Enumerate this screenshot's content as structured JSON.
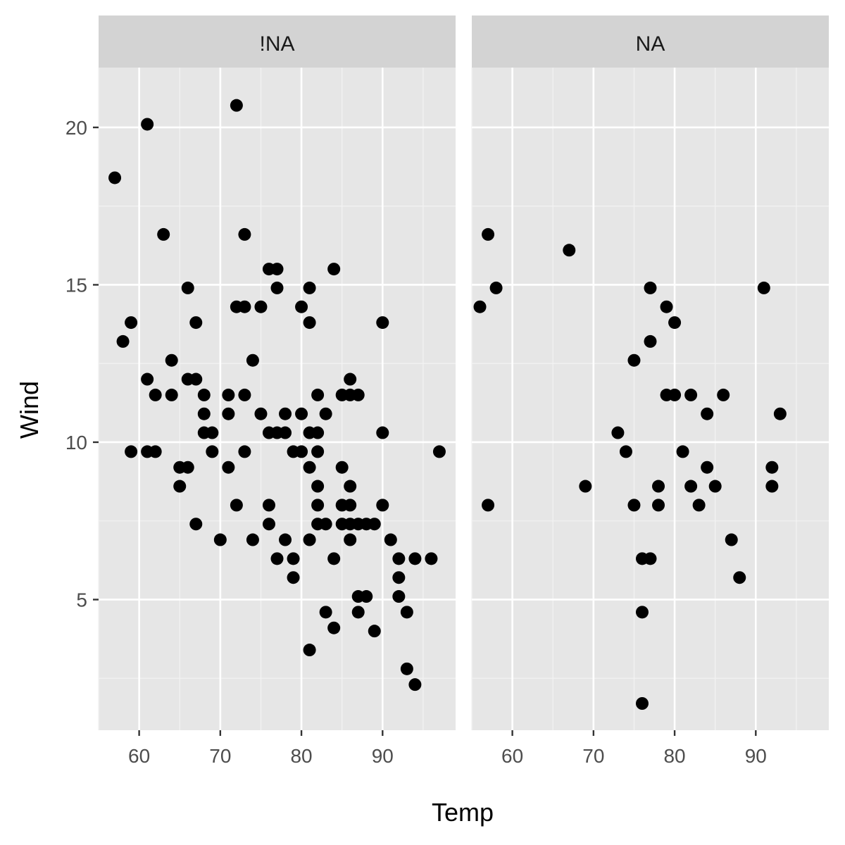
{
  "chart_data": {
    "type": "scatter",
    "xlabel": "Temp",
    "ylabel": "Wind",
    "xlim": [
      55,
      99
    ],
    "ylim": [
      0.85,
      21.9
    ],
    "x_ticks": [
      60,
      70,
      80,
      90
    ],
    "x_minor_ticks": [
      55,
      65,
      75,
      85,
      95
    ],
    "y_ticks": [
      5,
      10,
      15,
      20
    ],
    "y_minor_ticks": [
      2.5,
      7.5,
      12.5,
      17.5
    ],
    "grid": true,
    "legend": "none",
    "panel_background": "#e6e6e6",
    "strip_background": "#d3d3d3",
    "point_color": "#000000",
    "panels": [
      {
        "label": "!NA",
        "points": [
          [
            57,
            18.4
          ],
          [
            61,
            20.1
          ],
          [
            63,
            16.6
          ],
          [
            58,
            13.2
          ],
          [
            59,
            13.8
          ],
          [
            61,
            12.0
          ],
          [
            62,
            11.5
          ],
          [
            64,
            12.6
          ],
          [
            59,
            9.7
          ],
          [
            61,
            9.7
          ],
          [
            62,
            9.7
          ],
          [
            65,
            9.2
          ],
          [
            66,
            9.2
          ],
          [
            65,
            8.6
          ],
          [
            66,
            14.9
          ],
          [
            67,
            13.8
          ],
          [
            66,
            12.0
          ],
          [
            67,
            12.0
          ],
          [
            64,
            11.5
          ],
          [
            68,
            11.5
          ],
          [
            68,
            10.9
          ],
          [
            68,
            10.3
          ],
          [
            69,
            10.3
          ],
          [
            69,
            9.7
          ],
          [
            67,
            7.4
          ],
          [
            70,
            6.9
          ],
          [
            71,
            11.5
          ],
          [
            71,
            10.9
          ],
          [
            71,
            9.2
          ],
          [
            72,
            20.7
          ],
          [
            72,
            14.3
          ],
          [
            73,
            14.3
          ],
          [
            73,
            16.6
          ],
          [
            73,
            11.5
          ],
          [
            74,
            12.6
          ],
          [
            73,
            9.7
          ],
          [
            72,
            8.0
          ],
          [
            74,
            6.9
          ],
          [
            75,
            14.3
          ],
          [
            75,
            10.9
          ],
          [
            76,
            15.5
          ],
          [
            77,
            15.5
          ],
          [
            77,
            14.9
          ],
          [
            76,
            10.3
          ],
          [
            77,
            10.3
          ],
          [
            78,
            10.3
          ],
          [
            78,
            10.9
          ],
          [
            76,
            8.0
          ],
          [
            76,
            7.4
          ],
          [
            78,
            6.9
          ],
          [
            77,
            6.3
          ],
          [
            79,
            6.3
          ],
          [
            79,
            5.7
          ],
          [
            79,
            9.7
          ],
          [
            80,
            9.7
          ],
          [
            80,
            10.9
          ],
          [
            80,
            14.3
          ],
          [
            81,
            14.9
          ],
          [
            81,
            13.8
          ],
          [
            81,
            10.3
          ],
          [
            82,
            10.3
          ],
          [
            81,
            9.2
          ],
          [
            82,
            9.7
          ],
          [
            82,
            8.6
          ],
          [
            82,
            8.0
          ],
          [
            82,
            7.4
          ],
          [
            83,
            7.4
          ],
          [
            81,
            6.9
          ],
          [
            84,
            6.3
          ],
          [
            84,
            15.5
          ],
          [
            82,
            11.5
          ],
          [
            83,
            10.9
          ],
          [
            85,
            11.5
          ],
          [
            86,
            11.5
          ],
          [
            87,
            11.5
          ],
          [
            86,
            12.0
          ],
          [
            85,
            9.2
          ],
          [
            86,
            8.6
          ],
          [
            85,
            8.0
          ],
          [
            86,
            8.0
          ],
          [
            85,
            7.4
          ],
          [
            86,
            7.4
          ],
          [
            87,
            7.4
          ],
          [
            88,
            7.4
          ],
          [
            89,
            7.4
          ],
          [
            86,
            6.9
          ],
          [
            90,
            8.0
          ],
          [
            90,
            13.8
          ],
          [
            90,
            10.3
          ],
          [
            91,
            6.9
          ],
          [
            92,
            6.3
          ],
          [
            92,
            5.7
          ],
          [
            92,
            5.1
          ],
          [
            93,
            4.6
          ],
          [
            94,
            6.3
          ],
          [
            96,
            6.3
          ],
          [
            97,
            9.7
          ],
          [
            87,
            5.1
          ],
          [
            88,
            5.1
          ],
          [
            87,
            4.6
          ],
          [
            83,
            4.6
          ],
          [
            84,
            4.1
          ],
          [
            89,
            4.0
          ],
          [
            81,
            3.4
          ],
          [
            93,
            2.8
          ],
          [
            94,
            2.3
          ]
        ]
      },
      {
        "label": "NA",
        "points": [
          [
            56,
            14.3
          ],
          [
            57,
            16.6
          ],
          [
            58,
            14.9
          ],
          [
            57,
            8.0
          ],
          [
            67,
            16.1
          ],
          [
            69,
            8.6
          ],
          [
            73,
            10.3
          ],
          [
            74,
            9.7
          ],
          [
            75,
            12.6
          ],
          [
            75,
            8.0
          ],
          [
            76,
            6.3
          ],
          [
            77,
            6.3
          ],
          [
            76,
            4.6
          ],
          [
            76,
            1.7
          ],
          [
            77,
            14.9
          ],
          [
            77,
            13.2
          ],
          [
            78,
            8.6
          ],
          [
            78,
            8.0
          ],
          [
            79,
            14.3
          ],
          [
            80,
            13.8
          ],
          [
            79,
            11.5
          ],
          [
            80,
            11.5
          ],
          [
            82,
            11.5
          ],
          [
            81,
            9.7
          ],
          [
            82,
            8.6
          ],
          [
            83,
            8.0
          ],
          [
            84,
            10.9
          ],
          [
            84,
            9.2
          ],
          [
            85,
            8.6
          ],
          [
            86,
            11.5
          ],
          [
            87,
            6.9
          ],
          [
            88,
            5.7
          ],
          [
            91,
            14.9
          ],
          [
            92,
            9.2
          ],
          [
            92,
            8.6
          ],
          [
            93,
            10.9
          ]
        ]
      }
    ]
  }
}
